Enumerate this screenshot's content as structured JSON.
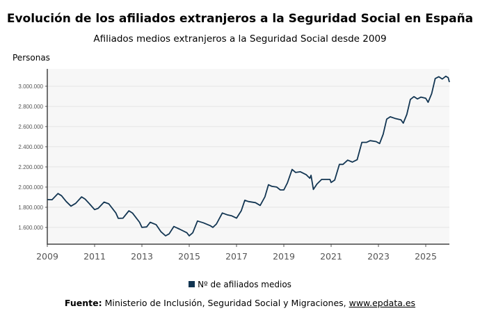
{
  "chart_data": {
    "type": "line",
    "title": "Evolución de los afiliados extranjeros a la Seguridad Social en España",
    "subtitle": "Afiliados medios extranjeros a la Seguridad Social desde 2009",
    "ylabel": "Personas",
    "xlabel": "",
    "xlim": [
      2009,
      2026
    ],
    "ylim": [
      1434000,
      3172000
    ],
    "grid": true,
    "legend_position": "bottom",
    "x_ticks": [
      2009,
      2011,
      2013,
      2015,
      2017,
      2019,
      2021,
      2023,
      2025
    ],
    "x_tick_labels": [
      "2009",
      "2011",
      "2013",
      "2015",
      "2017",
      "2019",
      "2021",
      "2023",
      "2025"
    ],
    "y_ticks": [
      1600000,
      1800000,
      2000000,
      2200000,
      2400000,
      2600000,
      2800000,
      3000000
    ],
    "y_tick_labels": [
      "1.600.000",
      "1.800.000",
      "2.000.000",
      "2.200.000",
      "2.400.000",
      "2.600.000",
      "2.800.000",
      "3.000.000"
    ],
    "series": [
      {
        "name": "Nº de afiliados medios",
        "color": "#123552",
        "x": [
          2009.0,
          2009.2,
          2009.45,
          2009.6,
          2009.8,
          2010.0,
          2010.2,
          2010.45,
          2010.6,
          2010.8,
          2011.0,
          2011.15,
          2011.4,
          2011.6,
          2011.9,
          2012.0,
          2012.2,
          2012.45,
          2012.6,
          2012.9,
          2013.0,
          2013.2,
          2013.35,
          2013.6,
          2013.8,
          2014.0,
          2014.15,
          2014.35,
          2014.6,
          2014.9,
          2015.0,
          2015.15,
          2015.35,
          2015.6,
          2015.9,
          2016.0,
          2016.15,
          2016.4,
          2016.6,
          2016.8,
          2017.0,
          2017.2,
          2017.35,
          2017.5,
          2017.8,
          2018.0,
          2018.2,
          2018.35,
          2018.5,
          2018.7,
          2018.85,
          2019.0,
          2019.15,
          2019.35,
          2019.5,
          2019.7,
          2019.95,
          2020.1,
          2020.15,
          2020.25,
          2020.4,
          2020.6,
          2020.95,
          2021.0,
          2021.15,
          2021.35,
          2021.5,
          2021.7,
          2021.9,
          2022.1,
          2022.3,
          2022.5,
          2022.65,
          2022.9,
          2023.05,
          2023.2,
          2023.35,
          2023.5,
          2023.7,
          2023.95,
          2024.05,
          2024.2,
          2024.35,
          2024.5,
          2024.65,
          2024.8,
          2025.0,
          2025.1,
          2025.25,
          2025.4,
          2025.55,
          2025.7,
          2025.85,
          2025.95,
          2026.0
        ],
        "values": [
          1876000,
          1875000,
          1936000,
          1915000,
          1857000,
          1811000,
          1839000,
          1903000,
          1880000,
          1830000,
          1777000,
          1789000,
          1851000,
          1834000,
          1743000,
          1690000,
          1692000,
          1765000,
          1743000,
          1651000,
          1600000,
          1605000,
          1651000,
          1628000,
          1559000,
          1517000,
          1536000,
          1609000,
          1582000,
          1547000,
          1517000,
          1547000,
          1664000,
          1646000,
          1616000,
          1600000,
          1634000,
          1743000,
          1726000,
          1715000,
          1692000,
          1765000,
          1869000,
          1857000,
          1846000,
          1818000,
          1903000,
          2023000,
          2007000,
          2000000,
          1972000,
          1972000,
          2041000,
          2175000,
          2145000,
          2152000,
          2122000,
          2087000,
          2117000,
          1977000,
          2030000,
          2076000,
          2076000,
          2046000,
          2069000,
          2225000,
          2225000,
          2267000,
          2248000,
          2271000,
          2444000,
          2444000,
          2460000,
          2451000,
          2432000,
          2524000,
          2674000,
          2697000,
          2681000,
          2667000,
          2634000,
          2720000,
          2869000,
          2897000,
          2874000,
          2892000,
          2880000,
          2841000,
          2926000,
          3076000,
          3094000,
          3071000,
          3099000,
          3085000,
          3041000
        ]
      }
    ],
    "source_label": "Fuente:",
    "source_text": "Ministerio de Inclusión, Seguridad Social y Migraciones,",
    "source_link": "www.epdata.es"
  }
}
